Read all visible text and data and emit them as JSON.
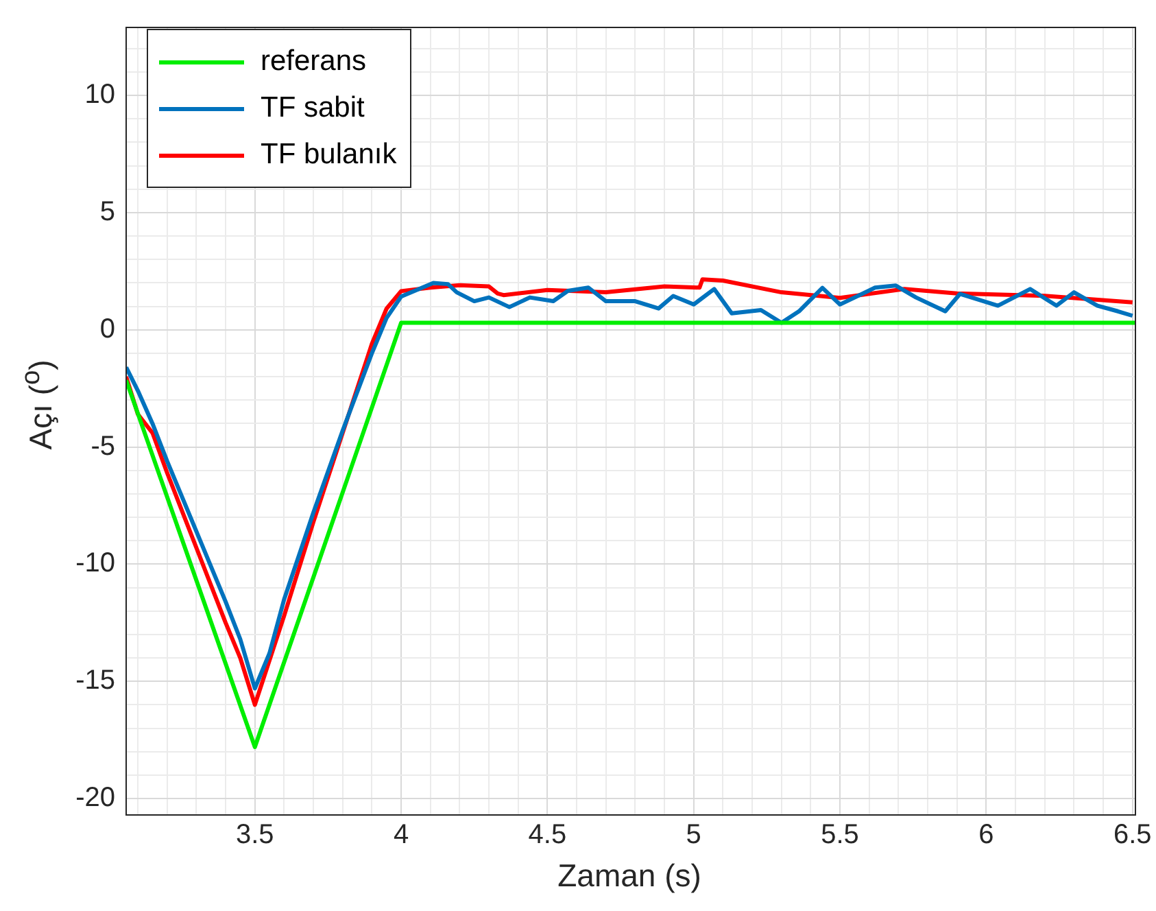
{
  "chart_data": {
    "type": "line",
    "xlabel": "Zaman (s)",
    "ylabel": "Açı ($^{o}$)",
    "xlim": [
      3.06,
      6.51
    ],
    "ylim": [
      -20.7,
      12.9
    ],
    "xticks": [
      {
        "value": 3.1,
        "label": null
      },
      {
        "value": 3.2,
        "label": null
      },
      {
        "value": 3.3,
        "label": null
      },
      {
        "value": 3.4,
        "label": null
      },
      3.5,
      {
        "value": 3.6,
        "label": null
      },
      {
        "value": 3.7,
        "label": null
      },
      {
        "value": 3.8,
        "label": null
      },
      {
        "value": 3.9,
        "label": null
      },
      4,
      {
        "value": 4.1,
        "label": null
      },
      {
        "value": 4.2,
        "label": null
      },
      {
        "value": 4.3,
        "label": null
      },
      {
        "value": 4.4,
        "label": null
      },
      4.5,
      {
        "value": 4.6,
        "label": null
      },
      {
        "value": 4.7,
        "label": null
      },
      {
        "value": 4.8,
        "label": null
      },
      {
        "value": 4.9,
        "label": null
      },
      5,
      {
        "value": 5.1,
        "label": null
      },
      {
        "value": 5.2,
        "label": null
      },
      {
        "value": 5.3,
        "label": null
      },
      {
        "value": 5.4,
        "label": null
      },
      5.5,
      {
        "value": 5.6,
        "label": null
      },
      {
        "value": 5.7,
        "label": null
      },
      {
        "value": 5.8,
        "label": null
      },
      {
        "value": 5.9,
        "label": null
      },
      6,
      {
        "value": 6.1,
        "label": null
      },
      {
        "value": 6.2,
        "label": null
      },
      {
        "value": 6.3,
        "label": null
      },
      {
        "value": 6.4,
        "label": null
      },
      6.5
    ],
    "yticks": [
      -20,
      {
        "value": -19,
        "label": null
      },
      {
        "value": -18,
        "label": null
      },
      {
        "value": -17,
        "label": null
      },
      {
        "value": -16,
        "label": null
      },
      -15,
      {
        "value": -14,
        "label": null
      },
      {
        "value": -13,
        "label": null
      },
      {
        "value": -12,
        "label": null
      },
      {
        "value": -11,
        "label": null
      },
      -10,
      {
        "value": -9,
        "label": null
      },
      {
        "value": -8,
        "label": null
      },
      {
        "value": -7,
        "label": null
      },
      {
        "value": -6,
        "label": null
      },
      -5,
      {
        "value": -4,
        "label": null
      },
      {
        "value": -3,
        "label": null
      },
      {
        "value": -2,
        "label": null
      },
      {
        "value": -1,
        "label": null
      },
      0,
      {
        "value": 1,
        "label": null
      },
      {
        "value": 2,
        "label": null
      },
      {
        "value": 3,
        "label": null
      },
      {
        "value": 4,
        "label": null
      },
      5,
      {
        "value": 6,
        "label": null
      },
      {
        "value": 7,
        "label": null
      },
      {
        "value": 8,
        "label": null
      },
      {
        "value": 9,
        "label": null
      },
      10,
      {
        "value": 11,
        "label": null
      },
      {
        "value": 12,
        "label": null
      }
    ],
    "grid": true,
    "legend": "top left",
    "marker": "none",
    "line_style": "solid",
    "series": [
      {
        "name": "referans",
        "color": "#00ee00",
        "x": [
          3.06,
          3.5,
          4.0,
          6.51
        ],
        "values": [
          -2.15,
          -17.8,
          0.3,
          0.3
        ]
      },
      {
        "name": "TF sabit",
        "color": "#0072bd",
        "x": [
          3.06,
          3.1,
          3.15,
          3.2,
          3.3,
          3.4,
          3.45,
          3.5,
          3.55,
          3.6,
          3.7,
          3.8,
          3.9,
          3.95,
          4.0,
          4.11,
          4.16,
          4.19,
          4.25,
          4.3,
          4.37,
          4.44,
          4.52,
          4.57,
          4.64,
          4.7,
          4.8,
          4.88,
          4.93,
          5.0,
          5.07,
          5.13,
          5.23,
          5.3,
          5.36,
          5.44,
          5.5,
          5.62,
          5.69,
          5.76,
          5.86,
          5.91,
          6.04,
          6.15,
          6.24,
          6.3,
          6.38,
          6.45,
          6.5
        ],
        "values": [
          -1.6,
          -2.6,
          -4.0,
          -5.6,
          -8.6,
          -11.6,
          -13.2,
          -15.3,
          -13.8,
          -11.5,
          -7.8,
          -4.3,
          -1.0,
          0.5,
          1.42,
          2.0,
          1.95,
          1.6,
          1.22,
          1.38,
          0.97,
          1.38,
          1.22,
          1.66,
          1.8,
          1.22,
          1.22,
          0.91,
          1.44,
          1.08,
          1.74,
          0.7,
          0.84,
          0.3,
          0.79,
          1.79,
          1.08,
          1.8,
          1.89,
          1.38,
          0.79,
          1.53,
          1.03,
          1.74,
          1.03,
          1.6,
          1.03,
          0.79,
          0.6
        ]
      },
      {
        "name": "TF bulanık",
        "color": "#ff0000",
        "x": [
          3.06,
          3.1,
          3.15,
          3.2,
          3.3,
          3.4,
          3.45,
          3.5,
          3.6,
          3.7,
          3.8,
          3.9,
          3.95,
          4.0,
          4.1,
          4.2,
          4.3,
          4.33,
          4.35,
          4.5,
          4.7,
          4.9,
          5.02,
          5.03,
          5.1,
          5.3,
          5.5,
          5.72,
          5.9,
          6.2,
          6.5
        ],
        "values": [
          -2.0,
          -3.6,
          -4.4,
          -6.1,
          -9.3,
          -12.5,
          -14.0,
          -16.0,
          -12.2,
          -8.2,
          -4.4,
          -0.6,
          0.9,
          1.65,
          1.8,
          1.9,
          1.85,
          1.55,
          1.48,
          1.7,
          1.6,
          1.85,
          1.8,
          2.15,
          2.1,
          1.6,
          1.36,
          1.74,
          1.55,
          1.45,
          1.17
        ]
      }
    ]
  }
}
